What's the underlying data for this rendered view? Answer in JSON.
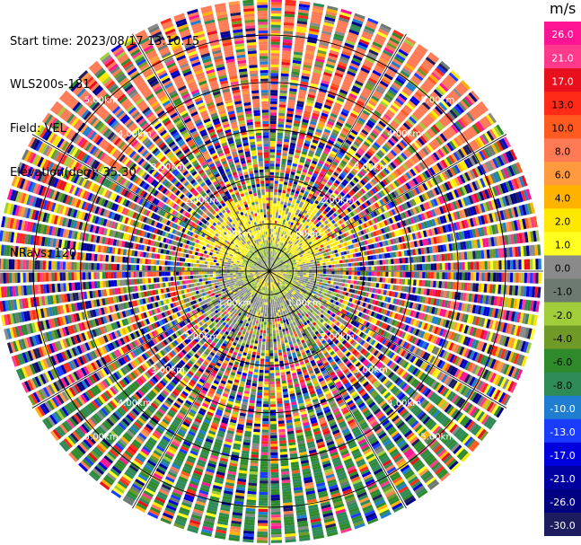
{
  "header": {
    "start_time": "Start time: 2023/08/17 13:10:15",
    "instrument": "WLS200s-181",
    "field": "Field: VEL",
    "elevation": "Elevation(deg): 35.30",
    "nrays": "NRays: 120"
  },
  "chart_data": {
    "type": "heatmap",
    "projection": "polar PPI",
    "field": "VEL",
    "units": "m/s",
    "nrays": 120,
    "elevation_deg": 35.3,
    "range_ring_labels": [
      "1.00km",
      "2.00km",
      "3.00km",
      "4.00km",
      "5.00km"
    ],
    "max_range_km": 5.8,
    "colorbar": {
      "title": "m/s",
      "ticks": [
        "26.0",
        "21.0",
        "17.0",
        "13.0",
        "10.0",
        "8.0",
        "6.0",
        "4.0",
        "2.0",
        "1.0",
        "0.0",
        "-1.0",
        "-2.0",
        "-4.0",
        "-6.0",
        "-8.0",
        "-10.0",
        "-13.0",
        "-17.0",
        "-21.0",
        "-26.0",
        "-30.0"
      ],
      "colors": [
        "#ff1493",
        "#ff3a8c",
        "#e8101c",
        "#ff2a18",
        "#ff5a1f",
        "#ff7a55",
        "#ff9a3e",
        "#ffb300",
        "#ffe800",
        "#ffff20",
        "#8a8a8a",
        "#6d7a72",
        "#a2cd3a",
        "#6f9a28",
        "#2f8a2c",
        "#2e8b57",
        "#1f7ecf",
        "#1a3cff",
        "#0000dd",
        "#0000a0",
        "#000080",
        "#1c1c5e"
      ]
    },
    "value_pattern": {
      "inner_ring_km": [
        0,
        1.0
      ],
      "inner_dominant": [
        "0.0",
        "1.0",
        "2.0",
        "-1.0",
        "-2.0"
      ],
      "outer_noise": "random across full scale",
      "outer_bias_north": "positive (red/orange)",
      "outer_bias_south": "negative (green)"
    }
  }
}
